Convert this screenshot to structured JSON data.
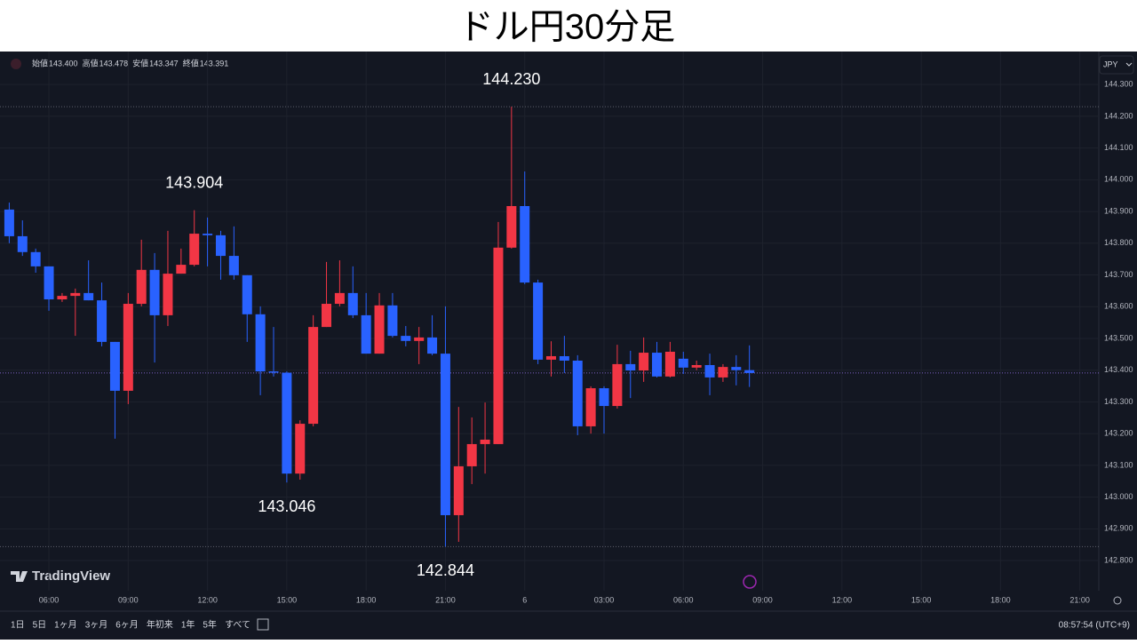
{
  "title": "ドル円30分足",
  "legend": {
    "items": [
      {
        "label": "始値",
        "value": "143.400"
      },
      {
        "label": "高値",
        "value": "143.478"
      },
      {
        "label": "安値",
        "value": "143.347"
      },
      {
        "label": "終値",
        "value": "143.391"
      }
    ]
  },
  "currency": "JPY",
  "brand": "TradingView",
  "toolbar": {
    "ranges": [
      "1日",
      "5日",
      "1ヶ月",
      "3ヶ月",
      "6ヶ月",
      "年初来",
      "1年",
      "5年",
      "すべて"
    ],
    "clock": "08:57:54 (UTC+9)"
  },
  "chart_data": {
    "type": "candlestick",
    "up_color": "#f23645",
    "down_color": "#2962ff",
    "grid": true,
    "open": [
      143.906,
      143.822,
      143.772,
      143.727,
      143.623,
      143.634,
      143.643,
      143.62,
      143.489,
      143.335,
      143.609,
      143.716,
      143.573,
      143.704,
      143.732,
      143.83,
      143.825,
      143.76,
      143.699,
      143.576,
      143.396,
      143.392,
      143.074,
      143.231,
      143.536,
      143.609,
      143.643,
      143.573,
      143.452,
      143.604,
      143.508,
      143.492,
      143.503,
      143.452,
      142.943,
      143.097,
      143.167,
      143.167,
      143.786,
      143.917,
      143.676,
      143.433,
      143.444,
      143.43,
      143.223,
      143.343,
      143.287,
      143.419,
      143.399,
      143.455,
      143.38,
      143.436,
      143.408,
      143.416,
      143.377,
      143.41,
      143.4
    ],
    "high": [
      143.928,
      143.872,
      143.783,
      143.727,
      143.643,
      143.657,
      143.746,
      143.676,
      143.489,
      143.643,
      143.811,
      143.769,
      143.839,
      143.783,
      143.904,
      143.881,
      143.839,
      143.853,
      143.699,
      143.601,
      143.536,
      143.396,
      143.242,
      143.573,
      143.741,
      143.746,
      143.727,
      143.643,
      143.643,
      143.643,
      143.539,
      143.536,
      143.573,
      143.601,
      143.284,
      143.251,
      143.298,
      143.867,
      144.23,
      144.026,
      143.685,
      143.491,
      143.508,
      143.447,
      143.349,
      143.349,
      143.48,
      143.461,
      143.503,
      143.489,
      143.489,
      143.458,
      143.43,
      143.452,
      143.419,
      143.447,
      143.478
    ],
    "low": [
      143.8,
      143.76,
      143.707,
      143.587,
      143.615,
      143.508,
      143.62,
      143.475,
      143.184,
      143.293,
      143.601,
      143.424,
      143.539,
      143.704,
      143.727,
      143.727,
      143.685,
      143.685,
      143.489,
      143.321,
      143.38,
      143.046,
      143.055,
      143.223,
      143.536,
      143.601,
      143.564,
      143.452,
      143.452,
      143.503,
      143.475,
      143.419,
      143.447,
      142.844,
      142.859,
      143.041,
      143.074,
      143.167,
      143.783,
      143.671,
      143.419,
      143.38,
      143.391,
      143.195,
      143.2,
      143.2,
      143.279,
      143.312,
      143.363,
      143.377,
      143.377,
      143.388,
      143.4,
      143.321,
      143.363,
      143.352,
      143.347
    ],
    "close": [
      143.822,
      143.772,
      143.727,
      143.623,
      143.634,
      143.643,
      143.62,
      143.489,
      143.335,
      143.609,
      143.716,
      143.573,
      143.704,
      143.732,
      143.83,
      143.825,
      143.76,
      143.699,
      143.576,
      143.396,
      143.392,
      143.074,
      143.231,
      143.536,
      143.609,
      143.643,
      143.573,
      143.452,
      143.604,
      143.508,
      143.492,
      143.503,
      143.452,
      142.943,
      143.097,
      143.167,
      143.181,
      143.786,
      143.917,
      143.676,
      143.433,
      143.444,
      143.43,
      143.223,
      143.343,
      143.287,
      143.419,
      143.399,
      143.455,
      143.38,
      143.458,
      143.408,
      143.416,
      143.377,
      143.41,
      143.4,
      143.391
    ],
    "annotations": [
      {
        "value": 144.23,
        "label": "144.230"
      },
      {
        "value": 143.904,
        "label": "143.904"
      },
      {
        "value": 143.046,
        "label": "143.046"
      },
      {
        "value": 142.844,
        "label": "142.844"
      }
    ],
    "ylim": [
      142.705,
      144.404
    ],
    "yticks": [
      {
        "value": 142.8,
        "label": "142.800"
      },
      {
        "value": 142.9,
        "label": "142.900"
      },
      {
        "value": 143,
        "label": "143.000"
      },
      {
        "value": 143.1,
        "label": "143.100"
      },
      {
        "value": 143.2,
        "label": "143.200"
      },
      {
        "value": 143.3,
        "label": "143.300"
      },
      {
        "value": 143.4,
        "label": "143.400"
      },
      {
        "value": 143.5,
        "label": "143.500"
      },
      {
        "value": 143.6,
        "label": "143.600"
      },
      {
        "value": 143.7,
        "label": "143.700"
      },
      {
        "value": 143.8,
        "label": "143.800"
      },
      {
        "value": 143.9,
        "label": "143.900"
      },
      {
        "value": 144,
        "label": "144.000"
      },
      {
        "value": 144.1,
        "label": "144.100"
      },
      {
        "value": 144.2,
        "label": "144.200"
      },
      {
        "value": 144.3,
        "label": "144.300"
      }
    ],
    "xticks": [
      "06:00",
      "09:00",
      "12:00",
      "15:00",
      "18:00",
      "21:00",
      "6",
      "03:00",
      "06:00",
      "09:00",
      "12:00",
      "15:00",
      "18:00",
      "21:00"
    ]
  }
}
